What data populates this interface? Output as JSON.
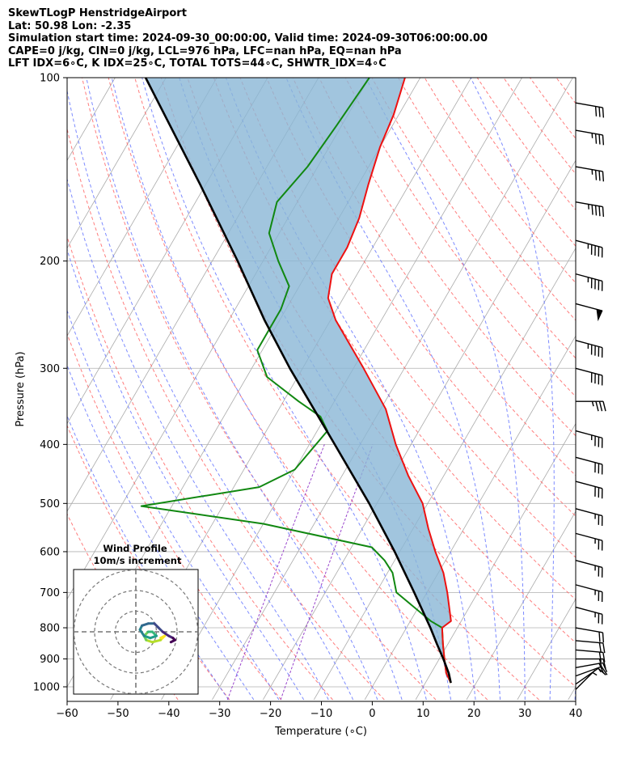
{
  "header": {
    "line1": "SkewTLogP HenstridgeAirport",
    "line2": "Lat: 50.98   Lon: -2.35",
    "line3": "Simulation start time: 2024-09-30_00:00:00, Valid time: 2024-09-30T06:00:00.00",
    "line4": "CAPE=0 j/kg, CIN=0 j/kg, LCL=976 hPa, LFC=nan hPa, EQ=nan hPa",
    "line5": "LFT IDX=6∘C, K IDX=25∘C, TOTAL TOTS=44∘C, SHWTR_IDX=4∘C"
  },
  "chart_data": {
    "type": "line",
    "skew_t": true,
    "xlabel": "Temperature (∘C)",
    "ylabel": "Pressure (hPa)",
    "xlim": [
      -60,
      40
    ],
    "ylim": [
      1050,
      100
    ],
    "y_scale": "log",
    "x_ticks": [
      -60,
      -50,
      -40,
      -30,
      -20,
      -10,
      0,
      10,
      20,
      30,
      40
    ],
    "y_ticks": [
      100,
      200,
      300,
      400,
      500,
      600,
      700,
      800,
      900,
      1000
    ],
    "grid": true,
    "colors": {
      "temperature": "#ee1111",
      "dewpoint": "#118811",
      "parcel": "#000000",
      "cape_fill": "#8ab6d6",
      "dry_adiabats": "#ff6666",
      "moist_adiabats": "#6677ff",
      "mixing_ratio": "#9944cc",
      "isotherms": "#aaaaaa"
    },
    "series": [
      {
        "name": "Temperature",
        "p": [
          985,
          950,
          900,
          850,
          800,
          780,
          700,
          650,
          600,
          550,
          500,
          450,
          400,
          350,
          300,
          250,
          230,
          210,
          190,
          170,
          150,
          130,
          115,
          100
        ],
        "t": [
          15,
          13,
          11,
          9,
          7,
          8,
          4,
          1,
          -3,
          -7,
          -11,
          -17,
          -23,
          -29,
          -38,
          -49,
          -53,
          -55,
          -55,
          -56,
          -58,
          -60,
          -61,
          -63
        ]
      },
      {
        "name": "Dewpoint",
        "p": [
          985,
          950,
          900,
          850,
          800,
          780,
          700,
          650,
          620,
          590,
          540,
          505,
          470,
          440,
          380,
          360,
          340,
          310,
          280,
          260,
          240,
          220,
          200,
          180,
          160,
          140,
          120,
          100
        ],
        "t": [
          15,
          13,
          11,
          9,
          7,
          4,
          -6,
          -9,
          -12,
          -16,
          -40,
          -66,
          -45,
          -40,
          -38,
          -41,
          -47,
          -56,
          -61,
          -61,
          -61,
          -62,
          -67,
          -72,
          -74,
          -72,
          -71,
          -70
        ]
      },
      {
        "name": "Parcel",
        "p": [
          985,
          950,
          900,
          850,
          800,
          700,
          600,
          500,
          400,
          300,
          250,
          200,
          150,
          100
        ],
        "t": [
          15,
          13.5,
          10.8,
          7.8,
          4.7,
          -2.5,
          -11,
          -21.5,
          -35,
          -52.5,
          -63,
          -75,
          -91,
          -114
        ]
      }
    ],
    "wind_barbs": {
      "p": [
        1010,
        990,
        960,
        930,
        900,
        870,
        840,
        800,
        740,
        680,
        620,
        560,
        510,
        460,
        420,
        380,
        340,
        300,
        270,
        235,
        210,
        185,
        160,
        140,
        122,
        110
      ],
      "speed_kt": [
        5,
        10,
        15,
        20,
        20,
        20,
        20,
        20,
        25,
        25,
        25,
        25,
        25,
        30,
        30,
        35,
        35,
        40,
        45,
        50,
        45,
        45,
        45,
        35,
        35,
        30
      ],
      "direction_deg": [
        225,
        235,
        250,
        260,
        270,
        275,
        275,
        280,
        285,
        285,
        285,
        285,
        285,
        285,
        285,
        285,
        270,
        285,
        285,
        285,
        285,
        285,
        280,
        280,
        280,
        280
      ]
    },
    "hodograph": {
      "title": "Wind Profile",
      "subtitle": "10m/s increment",
      "rings_ms": [
        10,
        20,
        30
      ],
      "u": [
        12,
        14,
        12,
        8,
        5,
        4,
        6,
        8,
        10,
        7,
        4,
        2,
        3,
        6,
        9,
        11,
        13,
        16,
        18,
        19,
        17
      ],
      "v": [
        -3,
        -2,
        -4,
        -5,
        -4,
        -2,
        0,
        0,
        -2,
        -3,
        -2,
        1,
        3,
        4,
        4,
        2,
        0,
        -2,
        -3,
        -4,
        -5
      ]
    }
  }
}
